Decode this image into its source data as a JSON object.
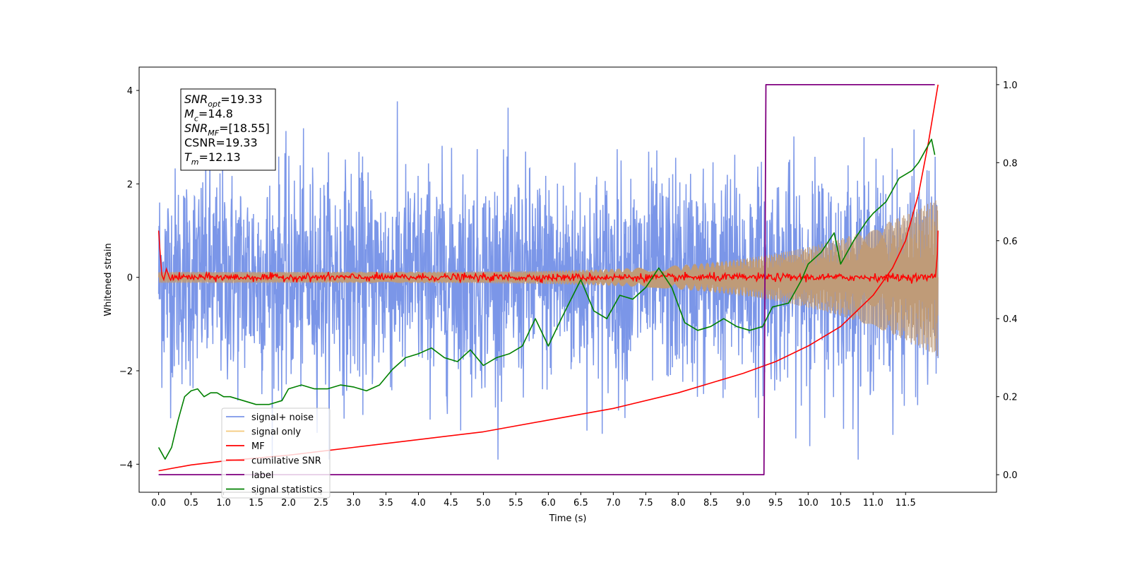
{
  "chart_data": {
    "type": "line",
    "xlabel": "Time (s)",
    "ylabel": "Whitened strain",
    "xlim": [
      -0.3,
      12.9
    ],
    "ylim": [
      -4.6,
      4.5
    ],
    "y2lim": [
      -0.045,
      1.045
    ],
    "xticks": [
      0.0,
      0.5,
      1.0,
      1.5,
      2.0,
      2.5,
      3.0,
      3.5,
      4.0,
      4.5,
      5.0,
      5.5,
      6.0,
      6.5,
      7.0,
      7.5,
      8.0,
      8.5,
      9.0,
      9.5,
      10.0,
      10.5,
      11.0,
      11.5
    ],
    "xtick_labels": [
      "0.0",
      "0.5",
      "1.0",
      "1.5",
      "2.0",
      "2.5",
      "3.0",
      "3.5",
      "4.0",
      "4.5",
      "5.0",
      "5.5",
      "6.0",
      "6.5",
      "7.0",
      "7.5",
      "8.0",
      "8.5",
      "9.0",
      "9.5",
      "10.0",
      "10.5",
      "11.0",
      "11.5"
    ],
    "yticks": [
      -4,
      -2,
      0,
      2,
      4
    ],
    "ytick_labels": [
      "−4",
      "−2",
      "0",
      "2",
      "4"
    ],
    "y2ticks": [
      0.0,
      0.2,
      0.4,
      0.6,
      0.8,
      1.0
    ],
    "y2tick_labels": [
      "0.0",
      "0.2",
      "0.4",
      "0.6",
      "0.8",
      "1.0"
    ],
    "grid": false,
    "legend_position": "lower-left",
    "annotation": {
      "lines": [
        {
          "base": "SNR",
          "sub": "opt",
          "value": "=19.33"
        },
        {
          "base": "M",
          "sub": "c",
          "value": "=14.8"
        },
        {
          "base": "SNR",
          "sub": "MF",
          "value": "=[18.55]"
        },
        {
          "base": "CSNR",
          "sub": "",
          "value": "=19.33"
        },
        {
          "base": "T",
          "sub": "m",
          "value": "=12.13"
        }
      ]
    },
    "series": [
      {
        "name": "signal+ noise",
        "color": "#7b96e8",
        "axis": "left",
        "kind": "noise",
        "t_end": 12.0,
        "amplitude_sd": 1.15,
        "envelope_extent_range": [
          -3.9,
          4.05
        ]
      },
      {
        "name": "signal only",
        "color": "#f5c97a",
        "axis": "left",
        "kind": "chirp",
        "amplitude_start": 0.12,
        "amplitude_end": 1.7,
        "t_end": 12.0,
        "mixed_color": "#bf9b78"
      },
      {
        "name": "MF",
        "color": "#ff0000",
        "axis": "left",
        "points": [
          [
            0.0,
            1.0
          ],
          [
            0.02,
            0.6
          ],
          [
            0.05,
            0.05
          ],
          [
            0.08,
            -0.05
          ],
          [
            0.12,
            0.18
          ],
          [
            0.16,
            0.02
          ],
          [
            11.96,
            0.0
          ],
          [
            11.99,
            0.5
          ],
          [
            12.0,
            1.0
          ]
        ],
        "jitter_sd": 0.04
      },
      {
        "name": "cumilative SNR",
        "color": "#ff0000",
        "axis": "right",
        "points": [
          [
            0.0,
            0.01
          ],
          [
            0.5,
            0.025
          ],
          [
            1.0,
            0.035
          ],
          [
            2.0,
            0.05
          ],
          [
            3.0,
            0.07
          ],
          [
            4.0,
            0.09
          ],
          [
            5.0,
            0.11
          ],
          [
            6.0,
            0.14
          ],
          [
            7.0,
            0.17
          ],
          [
            8.0,
            0.21
          ],
          [
            9.0,
            0.26
          ],
          [
            9.5,
            0.29
          ],
          [
            10.0,
            0.33
          ],
          [
            10.5,
            0.38
          ],
          [
            11.0,
            0.46
          ],
          [
            11.3,
            0.53
          ],
          [
            11.5,
            0.6
          ],
          [
            11.7,
            0.72
          ],
          [
            11.85,
            0.85
          ],
          [
            12.0,
            1.0
          ]
        ]
      },
      {
        "name": "label",
        "color": "#800080",
        "axis": "right",
        "points": [
          [
            0.0,
            0.0
          ],
          [
            9.32,
            0.0
          ],
          [
            9.35,
            1.0
          ],
          [
            11.95,
            1.0
          ]
        ]
      },
      {
        "name": "signal statistics",
        "color": "#008000",
        "axis": "right",
        "points": [
          [
            0.0,
            0.07
          ],
          [
            0.05,
            0.055
          ],
          [
            0.1,
            0.04
          ],
          [
            0.2,
            0.07
          ],
          [
            0.3,
            0.14
          ],
          [
            0.4,
            0.2
          ],
          [
            0.5,
            0.215
          ],
          [
            0.6,
            0.22
          ],
          [
            0.7,
            0.2
          ],
          [
            0.8,
            0.21
          ],
          [
            0.9,
            0.21
          ],
          [
            1.0,
            0.2
          ],
          [
            1.1,
            0.2
          ],
          [
            1.3,
            0.19
          ],
          [
            1.5,
            0.18
          ],
          [
            1.7,
            0.18
          ],
          [
            1.9,
            0.19
          ],
          [
            2.0,
            0.22
          ],
          [
            2.2,
            0.23
          ],
          [
            2.4,
            0.22
          ],
          [
            2.6,
            0.22
          ],
          [
            2.8,
            0.23
          ],
          [
            3.0,
            0.225
          ],
          [
            3.2,
            0.215
          ],
          [
            3.4,
            0.23
          ],
          [
            3.6,
            0.27
          ],
          [
            3.8,
            0.3
          ],
          [
            4.0,
            0.31
          ],
          [
            4.2,
            0.325
          ],
          [
            4.4,
            0.3
          ],
          [
            4.6,
            0.29
          ],
          [
            4.8,
            0.32
          ],
          [
            5.0,
            0.28
          ],
          [
            5.2,
            0.3
          ],
          [
            5.4,
            0.31
          ],
          [
            5.6,
            0.33
          ],
          [
            5.8,
            0.4
          ],
          [
            6.0,
            0.33
          ],
          [
            6.2,
            0.4
          ],
          [
            6.5,
            0.5
          ],
          [
            6.7,
            0.42
          ],
          [
            6.9,
            0.4
          ],
          [
            7.1,
            0.46
          ],
          [
            7.3,
            0.45
          ],
          [
            7.5,
            0.48
          ],
          [
            7.7,
            0.53
          ],
          [
            7.9,
            0.48
          ],
          [
            8.1,
            0.39
          ],
          [
            8.3,
            0.37
          ],
          [
            8.5,
            0.38
          ],
          [
            8.7,
            0.4
          ],
          [
            8.9,
            0.38
          ],
          [
            9.1,
            0.37
          ],
          [
            9.3,
            0.38
          ],
          [
            9.45,
            0.43
          ],
          [
            9.7,
            0.44
          ],
          [
            9.9,
            0.5
          ],
          [
            10.0,
            0.54
          ],
          [
            10.2,
            0.57
          ],
          [
            10.4,
            0.62
          ],
          [
            10.5,
            0.54
          ],
          [
            10.7,
            0.6
          ],
          [
            10.9,
            0.65
          ],
          [
            11.0,
            0.67
          ],
          [
            11.2,
            0.7
          ],
          [
            11.4,
            0.76
          ],
          [
            11.6,
            0.78
          ],
          [
            11.7,
            0.8
          ],
          [
            11.8,
            0.83
          ],
          [
            11.9,
            0.86
          ],
          [
            11.95,
            0.82
          ]
        ]
      }
    ]
  }
}
